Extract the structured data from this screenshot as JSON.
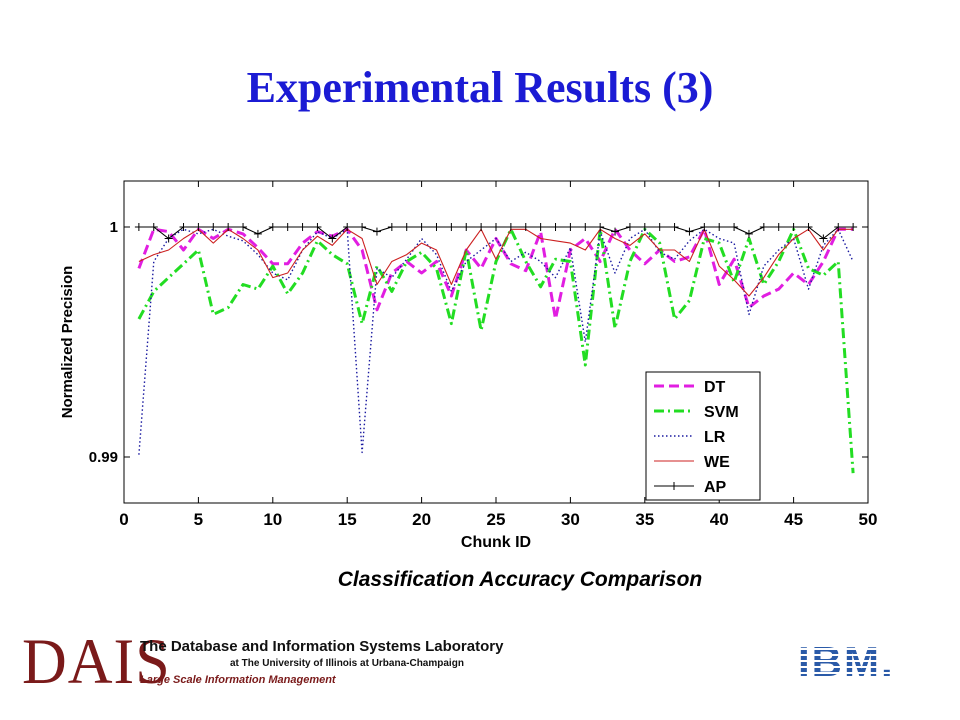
{
  "slide": {
    "title": "Experimental Results (3)",
    "caption": "Classification Accuracy Comparison"
  },
  "footer": {
    "logo_text": "DAIS",
    "lab_name": "The Database and Information Systems Laboratory",
    "university": "at The University of Illinois at Urbana-Champaign",
    "subtitle": "Large Scale Information Management",
    "partner_logo": "IBM."
  },
  "colors": {
    "title": "#1b1bd4",
    "DT": "#e11ee1",
    "SVM": "#22dd22",
    "LR": "#1a1aa0",
    "WE": "#cc2020",
    "AP": "#000000",
    "logo": "#7a1a1a",
    "ibm": "#2a5aa8"
  },
  "chart_data": {
    "type": "line",
    "xlabel": "Chunk ID",
    "ylabel": "Normalized Precision",
    "xlim": [
      0,
      50
    ],
    "ylim": [
      0.988,
      1.002
    ],
    "xticks": [
      "0",
      "5",
      "10",
      "15",
      "20",
      "25",
      "30",
      "35",
      "40",
      "45",
      "50"
    ],
    "yticks": [
      {
        "value": 0.99,
        "label": "0.99"
      },
      {
        "value": 1,
        "label": "1"
      }
    ],
    "grid": false,
    "legend_position": "bottom-right",
    "x": [
      1,
      2,
      3,
      4,
      5,
      6,
      7,
      8,
      9,
      10,
      11,
      12,
      13,
      14,
      15,
      16,
      17,
      18,
      19,
      20,
      21,
      22,
      23,
      24,
      25,
      26,
      27,
      28,
      29,
      30,
      31,
      32,
      33,
      34,
      35,
      36,
      37,
      38,
      39,
      40,
      41,
      42,
      43,
      44,
      45,
      46,
      47,
      48,
      49
    ],
    "series": [
      {
        "name": "DT",
        "style": "dashed",
        "values": [
          0.9982,
          0.9999,
          0.9998,
          0.999,
          0.9999,
          0.9995,
          0.9999,
          0.9997,
          0.9991,
          0.9984,
          0.9984,
          0.9993,
          0.9998,
          0.9996,
          0.9999,
          0.999,
          0.9964,
          0.998,
          0.9985,
          0.998,
          0.9985,
          0.997,
          0.999,
          0.9982,
          0.9995,
          0.9984,
          0.9981,
          0.9998,
          0.996,
          0.999,
          0.9995,
          0.9985,
          0.9999,
          0.999,
          0.9984,
          0.999,
          0.9985,
          0.9987,
          0.9999,
          0.9975,
          0.9986,
          0.9965,
          0.997,
          0.9973,
          0.998,
          0.9975,
          0.9985,
          0.9999,
          0.9999
        ]
      },
      {
        "name": "SVM",
        "style": "dashdot",
        "values": [
          0.996,
          0.9972,
          0.9978,
          0.9984,
          0.999,
          0.9962,
          0.9965,
          0.9975,
          0.9973,
          0.9983,
          0.9971,
          0.998,
          0.9994,
          0.9988,
          0.9984,
          0.9958,
          0.9983,
          0.9972,
          0.9985,
          0.9989,
          0.9982,
          0.9958,
          0.999,
          0.9955,
          0.9985,
          0.9999,
          0.9985,
          0.9974,
          0.9986,
          0.9985,
          0.994,
          0.9999,
          0.9956,
          0.9985,
          0.9999,
          0.9993,
          0.996,
          0.9968,
          0.9995,
          0.9993,
          0.9976,
          0.9995,
          0.9975,
          0.9985,
          0.9999,
          0.9982,
          0.9979,
          0.9985,
          0.9893
        ]
      },
      {
        "name": "LR",
        "style": "dotted",
        "values": [
          0.9901,
          0.9985,
          0.9995,
          0.9999,
          0.9997,
          0.9999,
          0.9996,
          0.9994,
          0.9988,
          0.998,
          0.9977,
          0.999,
          0.9998,
          0.9995,
          0.9999,
          0.9902,
          0.9982,
          0.9978,
          0.9986,
          0.9995,
          0.9988,
          0.9972,
          0.9985,
          0.999,
          0.9995,
          0.9985,
          0.9989,
          0.9985,
          0.9978,
          0.9991,
          0.995,
          0.9998,
          0.998,
          0.9995,
          0.9999,
          0.9989,
          0.9986,
          0.9994,
          0.9999,
          0.9995,
          0.9993,
          0.9962,
          0.9983,
          0.999,
          0.9995,
          0.9973,
          0.9992,
          0.9999,
          0.9985
        ]
      },
      {
        "name": "WE",
        "style": "solid",
        "values": [
          0.9985,
          0.9988,
          0.999,
          0.9995,
          0.9999,
          0.9993,
          0.9999,
          0.9995,
          0.999,
          0.9978,
          0.998,
          0.999,
          0.9996,
          0.9992,
          0.9999,
          0.9995,
          0.9975,
          0.9985,
          0.9988,
          0.9993,
          0.999,
          0.9975,
          0.999,
          0.9999,
          0.9986,
          0.9999,
          0.9999,
          0.9995,
          0.9994,
          0.9993,
          0.999,
          0.9999,
          0.9995,
          0.9992,
          0.9997,
          0.999,
          0.999,
          0.9985,
          0.9999,
          0.9983,
          0.9977,
          0.997,
          0.9978,
          0.9988,
          0.9995,
          0.9999,
          0.999,
          0.9999,
          0.9999
        ]
      },
      {
        "name": "AP",
        "style": "solid-plus",
        "values": [
          1.0,
          1.0,
          0.9995,
          1.0,
          1.0,
          1.0,
          1.0,
          1.0,
          0.9997,
          1.0,
          1.0,
          1.0,
          1.0,
          0.9995,
          1.0,
          1.0,
          0.9998,
          1.0,
          1.0,
          1.0,
          1.0,
          1.0,
          1.0,
          1.0,
          1.0,
          1.0,
          1.0,
          1.0,
          1.0,
          1.0,
          1.0,
          1.0,
          0.9998,
          1.0,
          1.0,
          1.0,
          1.0,
          0.9998,
          1.0,
          1.0,
          1.0,
          0.9997,
          1.0,
          1.0,
          1.0,
          1.0,
          0.9995,
          1.0,
          1.0
        ]
      }
    ]
  }
}
